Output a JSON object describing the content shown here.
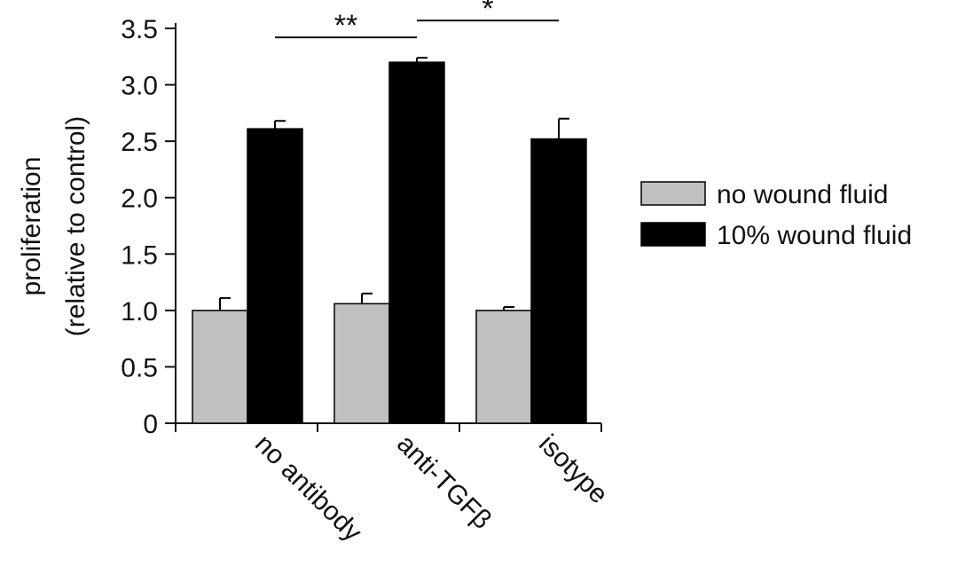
{
  "chart_data": {
    "type": "bar",
    "title": "",
    "xlabel": "",
    "ylabel_line1": "proliferation",
    "ylabel_line2": "(relative to control)",
    "ylim": [
      0,
      3.5
    ],
    "yticks": [
      0,
      0.5,
      1.0,
      1.5,
      2.0,
      2.5,
      3.0,
      3.5
    ],
    "ytick_labels": [
      "0",
      "0.5",
      "1.0",
      "1.5",
      "2.0",
      "2.5",
      "3.0",
      "3.5"
    ],
    "categories": [
      "no antibody",
      "anti-TGFβ",
      "isotype"
    ],
    "series": [
      {
        "name": "no wound fluid",
        "color": "#c0c0c0",
        "values": [
          1.0,
          1.06,
          1.0
        ],
        "errors": [
          0.11,
          0.09,
          0.03
        ]
      },
      {
        "name": "10% wound fluid",
        "color": "#000000",
        "values": [
          2.61,
          3.2,
          2.52
        ],
        "errors": [
          0.07,
          0.04,
          0.18
        ]
      }
    ],
    "significance": [
      {
        "from_category": 0,
        "to_category": 1,
        "y": 3.42,
        "label": "**"
      },
      {
        "from_category": 1,
        "to_category": 2,
        "y": 3.57,
        "label": "*"
      }
    ],
    "grid": false,
    "legend_position": "right"
  }
}
